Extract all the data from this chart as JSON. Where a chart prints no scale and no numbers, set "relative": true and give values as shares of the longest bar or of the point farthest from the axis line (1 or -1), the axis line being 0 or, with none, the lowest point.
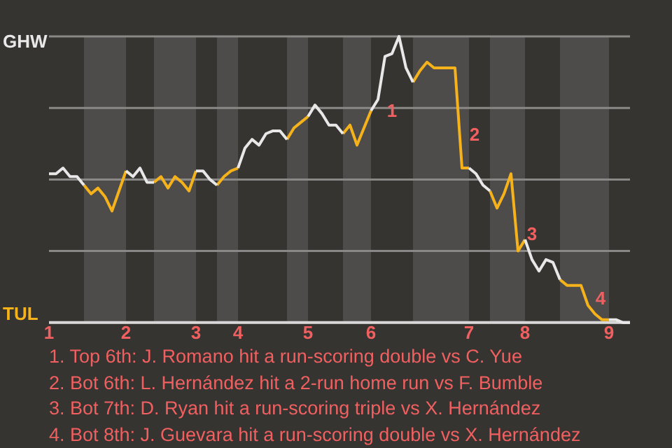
{
  "chart_data": {
    "type": "line",
    "relative": true,
    "grid": "y",
    "legend": false,
    "marker": "none",
    "line_style": "solid",
    "categories": [
      "1",
      null,
      null,
      null,
      null,
      null,
      null,
      null,
      null,
      null,
      null,
      "2",
      null,
      null,
      null,
      null,
      null,
      null,
      null,
      null,
      null,
      "3",
      null,
      null,
      null,
      null,
      null,
      "4",
      null,
      null,
      null,
      null,
      null,
      null,
      null,
      null,
      null,
      "5",
      null,
      null,
      null,
      null,
      null,
      null,
      null,
      null,
      "6",
      null,
      null,
      null,
      null,
      null,
      null,
      null,
      null,
      null,
      null,
      null,
      null,
      null,
      "7",
      null,
      null,
      null,
      null,
      null,
      null,
      null,
      "8",
      null,
      null,
      null,
      null,
      null,
      null,
      null,
      null,
      null,
      null,
      null,
      "9",
      null,
      null,
      null
    ],
    "series": [
      {
        "name": "GHW",
        "color": "#e8e8e8",
        "values": [
          0.52,
          0.52,
          0.54,
          0.51,
          0.51,
          0.48,
          null,
          null,
          null,
          null,
          null,
          0.53,
          0.51,
          0.54,
          0.49,
          0.49,
          null,
          null,
          null,
          null,
          null,
          0.53,
          0.53,
          0.5,
          0.48,
          null,
          null,
          0.54,
          0.61,
          0.64,
          0.62,
          0.66,
          0.67,
          0.67,
          0.64,
          null,
          null,
          0.72,
          0.76,
          0.73,
          0.69,
          0.69,
          0.66,
          null,
          null,
          null,
          0.74,
          0.78,
          0.93,
          0.94,
          1,
          0.89,
          0.84,
          null,
          null,
          null,
          null,
          null,
          null,
          null,
          0.54,
          0.52,
          0.48,
          0.46,
          null,
          null,
          null,
          null,
          0.29,
          0.22,
          0.18,
          0.22,
          0.21,
          0.15,
          null,
          null,
          null,
          null,
          null,
          null,
          0.01,
          0.01,
          0,
          0
        ]
      },
      {
        "name": "TUL",
        "color": "#f5b21a",
        "values": [
          null,
          null,
          null,
          null,
          null,
          0.48,
          0.45,
          0.47,
          0.44,
          0.39,
          0.46,
          0.53,
          null,
          null,
          null,
          0.49,
          0.51,
          0.47,
          0.51,
          0.49,
          0.46,
          0.53,
          null,
          null,
          0.48,
          0.51,
          0.53,
          0.54,
          null,
          null,
          null,
          null,
          null,
          null,
          0.64,
          0.68,
          0.7,
          0.72,
          null,
          null,
          null,
          null,
          0.66,
          0.69,
          0.62,
          0.68,
          0.74,
          null,
          null,
          null,
          null,
          null,
          0.84,
          0.88,
          0.91,
          0.89,
          0.89,
          0.89,
          0.89,
          0.54,
          0.54,
          null,
          null,
          0.46,
          0.4,
          0.45,
          0.52,
          0.25,
          0.29,
          null,
          null,
          null,
          null,
          0.15,
          0.13,
          0.13,
          0.13,
          0.06,
          0.03,
          0.01,
          0.01,
          null,
          null,
          null
        ]
      }
    ],
    "annotations": [
      "1",
      "2",
      "3",
      "4",
      "1. Top 6th: J. Romano hit a run-scoring double vs C. Yue",
      "2. Bot 6th: L. Hernández hit a 2-run home run vs F. Bumble",
      "3. Bot 7th: D. Ryan hit a run-scoring triple vs X. Hernández",
      "4. Bot 8th: J. Guevara hit a run-scoring double vs X. Hernández"
    ]
  }
}
